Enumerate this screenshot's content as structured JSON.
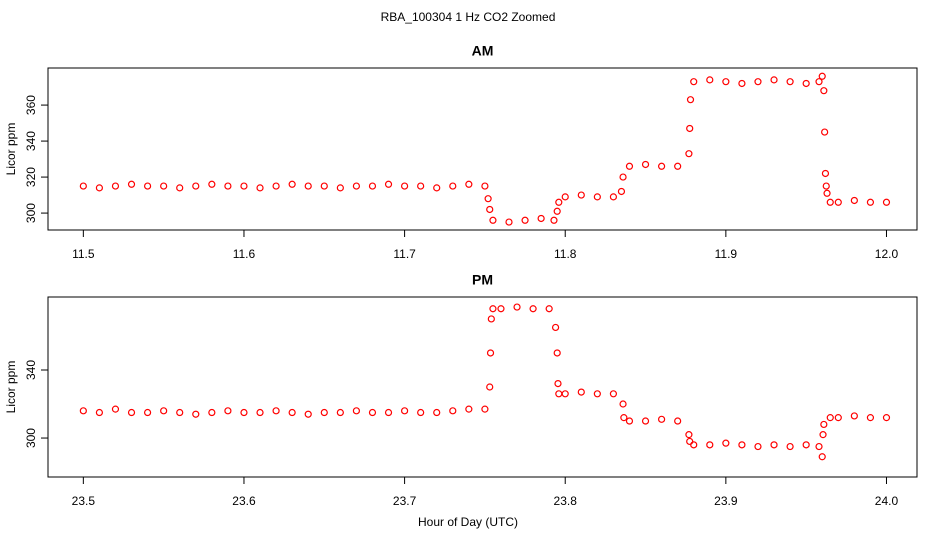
{
  "title": "RBA_100304  1 Hz CO2 Zoomed",
  "xlabel": "Hour of Day (UTC)",
  "chart_data": [
    {
      "type": "scatter",
      "title": "AM",
      "ylabel": "Licor ppm",
      "color": "#ff0000",
      "xlim": [
        11.478,
        12.019
      ],
      "ylim": [
        290.6,
        380.6
      ],
      "xticks": [
        11.5,
        11.6,
        11.7,
        11.8,
        11.9,
        {
          "value": 12,
          "label": "12.0"
        }
      ],
      "yticks": [
        300,
        320,
        340,
        360
      ],
      "x": [
        11.5,
        11.51,
        11.52,
        11.53,
        11.54,
        11.55,
        11.56,
        11.57,
        11.58,
        11.59,
        11.6,
        11.61,
        11.62,
        11.63,
        11.64,
        11.65,
        11.66,
        11.67,
        11.68,
        11.69,
        11.7,
        11.71,
        11.72,
        11.73,
        11.74,
        11.75,
        11.752,
        11.753,
        11.755,
        11.765,
        11.775,
        11.785,
        11.793,
        11.795,
        11.796,
        11.8,
        11.81,
        11.82,
        11.83,
        11.835,
        11.836,
        11.84,
        11.85,
        11.86,
        11.87,
        11.877,
        11.8775,
        11.878,
        11.88,
        11.89,
        11.9,
        11.91,
        11.92,
        11.93,
        11.94,
        11.95,
        11.958,
        11.96,
        11.961,
        11.9615,
        11.962,
        11.9625,
        11.963,
        11.965,
        11.97,
        11.98,
        11.99,
        12.0
      ],
      "values": [
        315,
        314,
        315,
        316,
        315,
        315,
        314,
        315,
        316,
        315,
        315,
        314,
        315,
        316,
        315,
        315,
        314,
        315,
        315,
        316,
        315,
        315,
        314,
        315,
        316,
        315,
        308,
        302,
        296,
        295,
        296,
        297,
        296,
        301,
        306,
        309,
        310,
        309,
        309,
        312,
        320,
        326,
        327,
        326,
        326,
        333,
        347,
        363,
        373,
        374,
        373,
        372,
        373,
        374,
        373,
        372,
        373,
        376,
        368,
        345,
        322,
        315,
        311,
        306,
        306,
        307,
        306,
        306
      ]
    },
    {
      "type": "scatter",
      "title": "PM",
      "ylabel": "Licor ppm",
      "color": "#ff0000",
      "xlim": [
        23.478,
        24.019
      ],
      "ylim": [
        277.1,
        382.9
      ],
      "xticks": [
        23.5,
        23.6,
        23.7,
        23.8,
        23.9,
        {
          "value": 24,
          "label": "24.0"
        }
      ],
      "yticks": [
        300,
        340
      ],
      "x": [
        23.5,
        23.51,
        23.52,
        23.53,
        23.54,
        23.55,
        23.56,
        23.57,
        23.58,
        23.59,
        23.6,
        23.61,
        23.62,
        23.63,
        23.64,
        23.65,
        23.66,
        23.67,
        23.68,
        23.69,
        23.7,
        23.71,
        23.72,
        23.73,
        23.74,
        23.75,
        23.753,
        23.7535,
        23.754,
        23.755,
        23.76,
        23.77,
        23.78,
        23.79,
        23.794,
        23.795,
        23.7955,
        23.796,
        23.8,
        23.81,
        23.82,
        23.83,
        23.836,
        23.8365,
        23.84,
        23.85,
        23.86,
        23.87,
        23.877,
        23.8775,
        23.88,
        23.89,
        23.9,
        23.91,
        23.92,
        23.93,
        23.94,
        23.95,
        23.958,
        23.96,
        23.9605,
        23.961,
        23.965,
        23.97,
        23.98,
        23.99,
        24.0
      ],
      "values": [
        316,
        315,
        317,
        315,
        315,
        316,
        315,
        314,
        315,
        316,
        315,
        315,
        316,
        315,
        314,
        315,
        315,
        316,
        315,
        315,
        316,
        315,
        315,
        316,
        317,
        317,
        330,
        350,
        370,
        376,
        376,
        377,
        376,
        376,
        365,
        350,
        332,
        326,
        326,
        327,
        326,
        326,
        320,
        312,
        310,
        310,
        311,
        310,
        302,
        298,
        296,
        296,
        297,
        296,
        295,
        296,
        295,
        296,
        295,
        289,
        302,
        308,
        312,
        312,
        313,
        312,
        312
      ]
    }
  ]
}
